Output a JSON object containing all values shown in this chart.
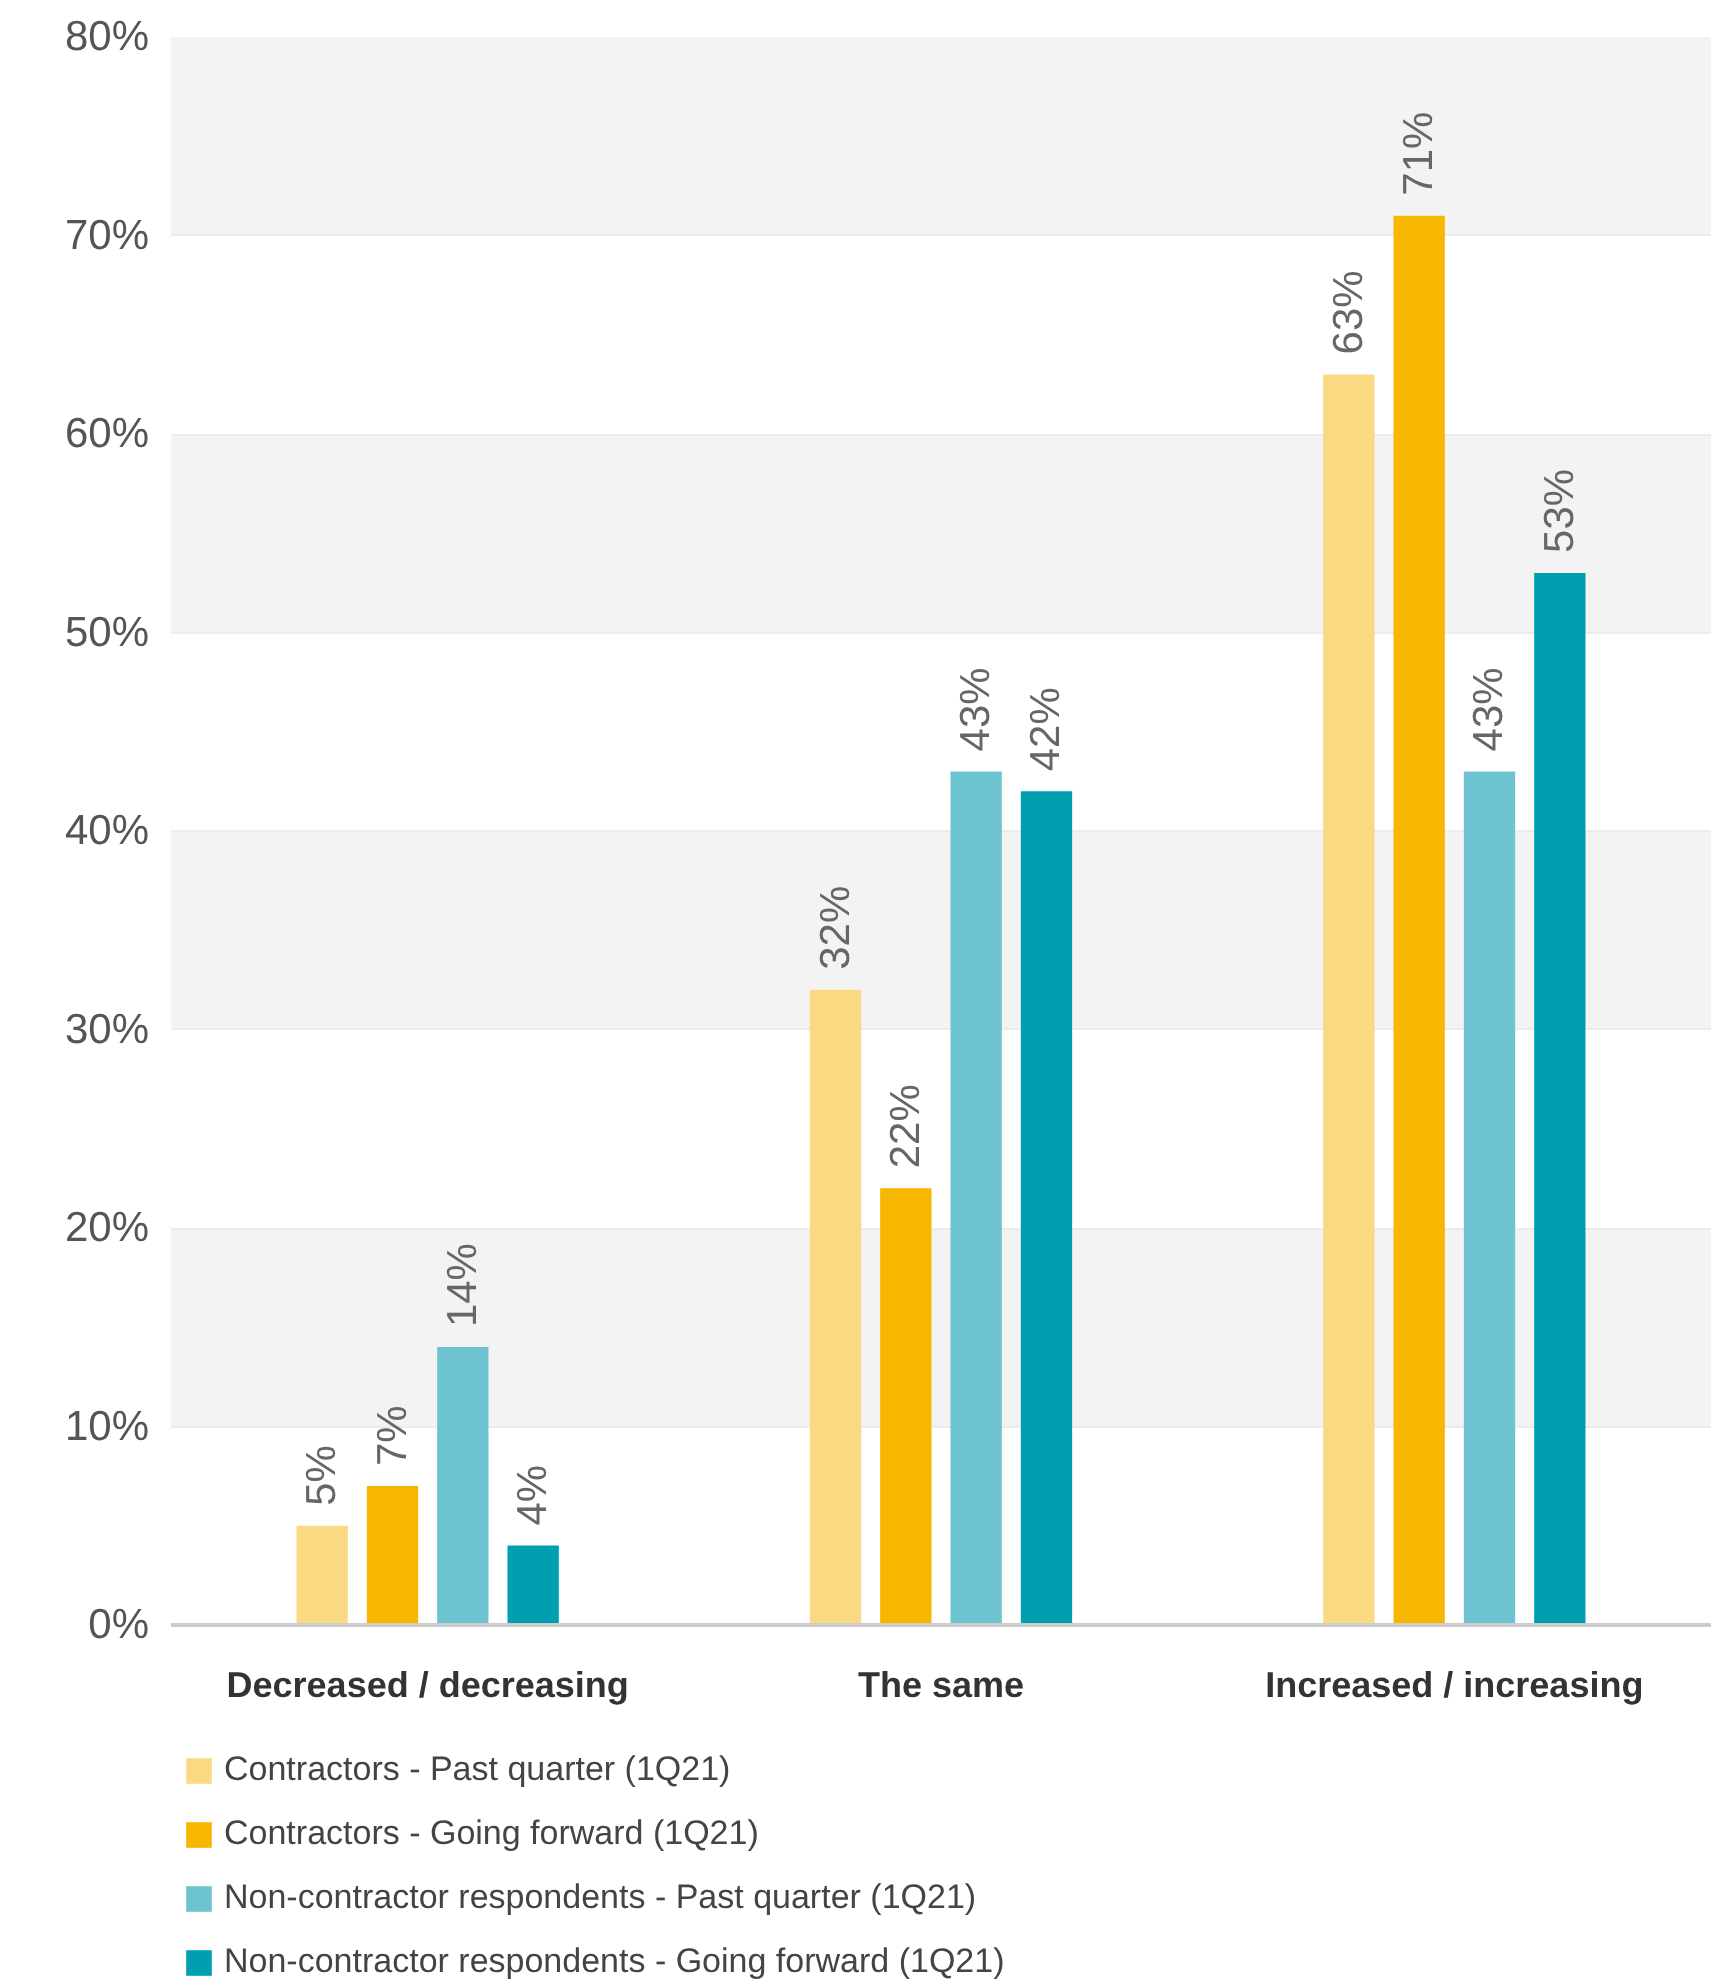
{
  "chart_data": {
    "type": "bar",
    "categories": [
      "Decreased / decreasing",
      "The same",
      "Increased / increasing"
    ],
    "series": [
      {
        "name": "Contractors - Past quarter (1Q21)",
        "color": "#fbd983",
        "values": [
          5,
          32,
          63
        ],
        "value_labels": [
          "5%",
          "32%",
          "63%"
        ]
      },
      {
        "name": "Contractors - Going forward (1Q21)",
        "color": "#f7b600",
        "values": [
          7,
          22,
          71
        ],
        "value_labels": [
          "7%",
          "22%",
          "71%"
        ]
      },
      {
        "name": "Non-contractor respondents - Past quarter (1Q21)",
        "color": "#6dc4d0",
        "values": [
          14,
          43,
          43
        ],
        "value_labels": [
          "14%",
          "43%",
          "43%"
        ]
      },
      {
        "name": "Non-contractor respondents - Going forward (1Q21)",
        "color": "#009fb0",
        "values": [
          4,
          42,
          53
        ],
        "value_labels": [
          "4%",
          "42%",
          "53%"
        ]
      }
    ],
    "ylim": [
      0,
      80
    ],
    "yticks": [
      {
        "value": 0,
        "label": "0%"
      },
      {
        "value": 10,
        "label": "10%"
      },
      {
        "value": 20,
        "label": "20%"
      },
      {
        "value": 30,
        "label": "30%"
      },
      {
        "value": 40,
        "label": "40%"
      },
      {
        "value": 50,
        "label": "50%"
      },
      {
        "value": 60,
        "label": "60%"
      },
      {
        "value": 70,
        "label": "70%"
      },
      {
        "value": 80,
        "label": "80%"
      }
    ],
    "grid": "y",
    "legend": "bottom"
  }
}
